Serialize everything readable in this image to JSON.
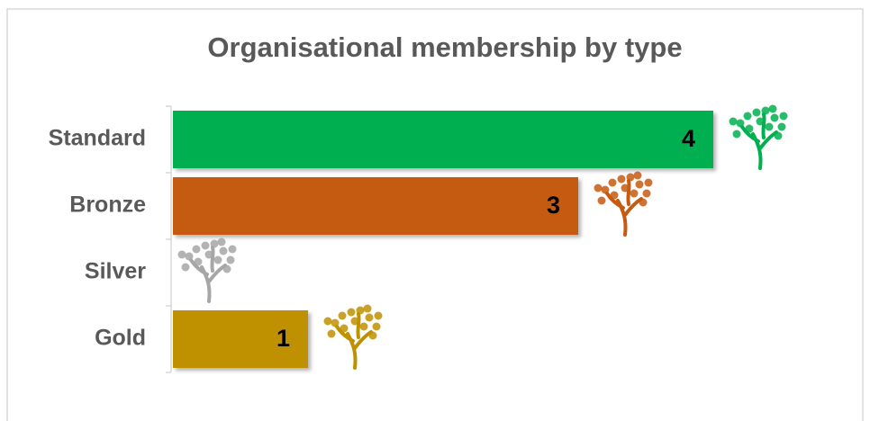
{
  "chart_data": {
    "type": "bar",
    "orientation": "horizontal",
    "title": "Organisational membership by type",
    "categories": [
      "Standard",
      "Bronze",
      "Silver",
      "Gold"
    ],
    "values": [
      4,
      3,
      0,
      1
    ],
    "colors": [
      "#00b050",
      "#c55a11",
      "#a6a6a6",
      "#bf9000"
    ]
  }
}
